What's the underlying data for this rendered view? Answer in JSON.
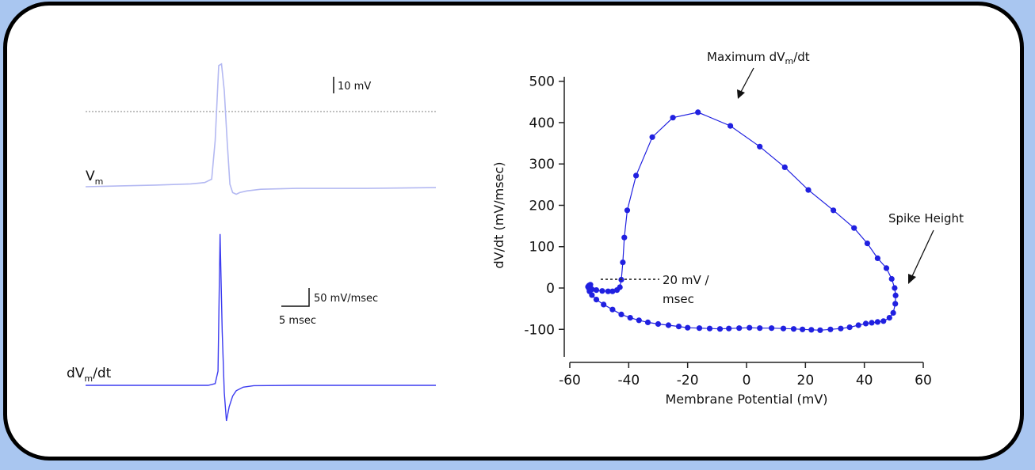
{
  "chart_data": [
    {
      "type": "line",
      "panel": "left",
      "description_labels": {
        "vm_base": "V",
        "vm_sub": "m",
        "dv_pre": "dV",
        "dv_sub": "m",
        "dv_post": "/dt"
      },
      "scale_bars": {
        "voltage": "10 mV",
        "derivative": "50 mV/msec",
        "time": "5 msec"
      },
      "series": [
        {
          "name": "Vm",
          "color": "#b4b9f2",
          "x": [
            0,
            5,
            10,
            15,
            17,
            18,
            18.5,
            19,
            19.4,
            19.8,
            20.2,
            20.6,
            21.0,
            21.5,
            22,
            23,
            25,
            30,
            40,
            50
          ],
          "values": [
            -52.5,
            -52,
            -51.5,
            -50.8,
            -50,
            -48,
            -25,
            20,
            21,
            5,
            -25,
            -51,
            -56,
            -57,
            -56,
            -55,
            -54,
            -53.5,
            -53.5,
            -53
          ]
        },
        {
          "name": "dVm/dt",
          "color": "#3c3cf0",
          "x": [
            0,
            17.5,
            18.5,
            18.9,
            19.2,
            19.5,
            19.8,
            20.1,
            20.5,
            21.0,
            21.5,
            22.5,
            24,
            30,
            50
          ],
          "values": [
            0,
            0,
            5,
            40,
            425,
            150,
            -20,
            -100,
            -60,
            -30,
            -15,
            -5,
            -1,
            0,
            0
          ]
        }
      ],
      "reference_line": {
        "label": "0 mV dotted reference",
        "value_mV": 0
      }
    },
    {
      "type": "scatter",
      "panel": "right",
      "title": "",
      "xlabel": "Membrane Potential (mV)",
      "ylabel": "dV/dt  (mV/msec)",
      "xlim": [
        -62,
        60
      ],
      "ylim": [
        -160,
        500
      ],
      "xticks": [
        -60,
        -40,
        -20,
        0,
        20,
        40,
        60
      ],
      "yticks": [
        -100,
        0,
        100,
        200,
        300,
        400,
        500
      ],
      "grid": false,
      "color": "#2020e0",
      "series": [
        {
          "name": "phase plot",
          "x": [
            -53,
            -53.5,
            -53.8,
            -53.5,
            -52.5,
            -51,
            -49,
            -47,
            -45.5,
            -44,
            -43,
            -42.5,
            -42,
            -41.5,
            -40.5,
            -37.5,
            -32,
            -25,
            -16.5,
            -5.5,
            4.5,
            13,
            21,
            29.5,
            36.5,
            41,
            44.5,
            47.5,
            49.3,
            50.3,
            50.6,
            50.5,
            49.8,
            48.5,
            46.5,
            44.5,
            42.5,
            40.5,
            38,
            35,
            32,
            28.5,
            25,
            22,
            19,
            16,
            12.5,
            8.5,
            4.5,
            1,
            -2.5,
            -6,
            -9,
            -12.5,
            -16,
            -20,
            -23,
            -26.5,
            -30,
            -33.5,
            -36.5,
            -39.5,
            -42.5,
            -45.5,
            -48.5,
            -51,
            -52.5,
            -53.3,
            -53.5,
            -53.2
          ],
          "y": [
            8,
            6,
            3,
            0,
            -3,
            -5,
            -7,
            -8,
            -8,
            -5,
            2,
            20,
            62,
            122,
            188,
            272,
            365,
            412,
            425,
            392,
            342,
            292,
            237,
            188,
            145,
            108,
            72,
            48,
            22,
            0,
            -18,
            -38,
            -60,
            -72,
            -80,
            -82,
            -84,
            -86,
            -90,
            -95,
            -98,
            -100,
            -102,
            -101,
            -100,
            -99,
            -98,
            -97,
            -97,
            -96,
            -97,
            -98,
            -99,
            -98,
            -97,
            -96,
            -93,
            -90,
            -87,
            -83,
            -78,
            -72,
            -64,
            -52,
            -40,
            -28,
            -17,
            -8,
            -1,
            4
          ]
        }
      ],
      "annotations": {
        "max_label": "Maximum dV",
        "max_sub": "m",
        "max_post": "/dt",
        "spike_height": "Spike Height",
        "threshold_line1": "20 mV /",
        "threshold_line2": "msec"
      }
    }
  ]
}
